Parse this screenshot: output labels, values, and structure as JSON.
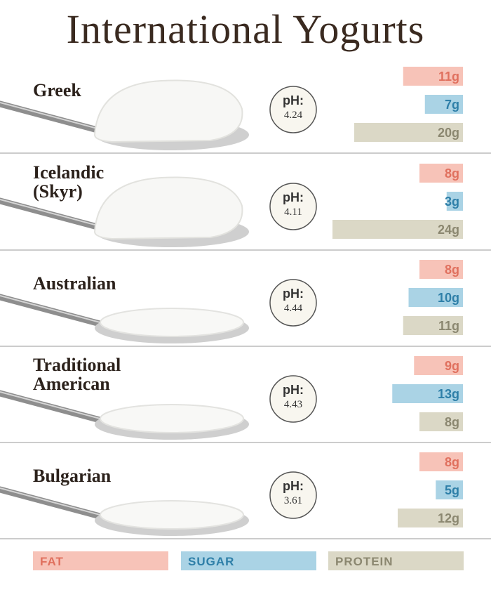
{
  "chart_data": {
    "type": "bar",
    "title": "International Yogurts",
    "categories": [
      "Greek",
      "Icelandic\n(Skyr)",
      "Australian",
      "Traditional\nAmerican",
      "Bulgarian"
    ],
    "ph_label": "pH:",
    "ph": [
      4.24,
      4.11,
      4.44,
      4.43,
      3.61
    ],
    "series": [
      {
        "name": "FAT",
        "color": "#f7c3b8",
        "text_color": "#e0705e",
        "values": [
          11,
          8,
          8,
          9,
          8
        ],
        "value_labels": [
          "11g",
          "8g",
          "8g",
          "9g",
          "8g"
        ]
      },
      {
        "name": "SUGAR",
        "color": "#aad3e5",
        "text_color": "#2e7fa8",
        "values": [
          7,
          3,
          10,
          13,
          5
        ],
        "value_labels": [
          "7g",
          "3g",
          "10g",
          "13g",
          "5g"
        ]
      },
      {
        "name": "PROTEIN",
        "color": "#dbd8c6",
        "text_color": "#8b8770",
        "values": [
          20,
          24,
          11,
          8,
          12
        ],
        "value_labels": [
          "20g",
          "24g",
          "11g",
          "8g",
          "12g"
        ]
      }
    ]
  }
}
